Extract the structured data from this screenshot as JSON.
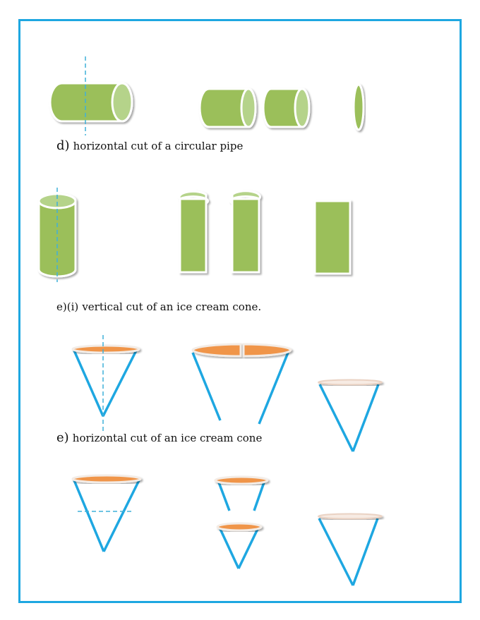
{
  "captions": {
    "pipe_horizontal": {
      "prefix": "d)",
      "text": "horizontal cut of a circular pipe"
    },
    "cone_vertical": {
      "prefix": "e)(i)",
      "text": "vertical cut of an ice cream cone."
    },
    "cone_horizontal": {
      "prefix": "e)",
      "text": "horizontal cut of an ice cream cone"
    }
  },
  "colors": {
    "frame": "#1ea7e1",
    "pipe_fill": "#9bbf5a",
    "pipe_end": "#b5d38a",
    "cone_line": "#1ea7e1",
    "ice_cream": "#f0954a",
    "cut_line": "#3fb0d9"
  }
}
